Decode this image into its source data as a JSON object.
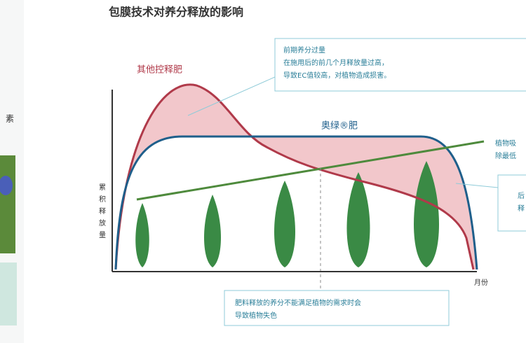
{
  "title": "包膜技术对养分释放的影响",
  "curves": {
    "other": "其他控释肥",
    "osmocote": "奥绿®肥"
  },
  "axes": {
    "y_label": [
      "累",
      "积",
      "释",
      "放",
      "量"
    ],
    "x_label": "月份"
  },
  "callouts": {
    "top": [
      "前期养分过量",
      "在施用后的前几个月释放量过高，",
      "导致EC值较高，对植物造成损害。"
    ],
    "right_line": [
      "植物吸",
      "除最低"
    ],
    "right_box": [
      "后",
      "释"
    ],
    "bottom": [
      "肥料释放的养分不能满足植物的需求时会",
      "导致植物失色"
    ]
  },
  "side": {
    "text": "素"
  }
}
